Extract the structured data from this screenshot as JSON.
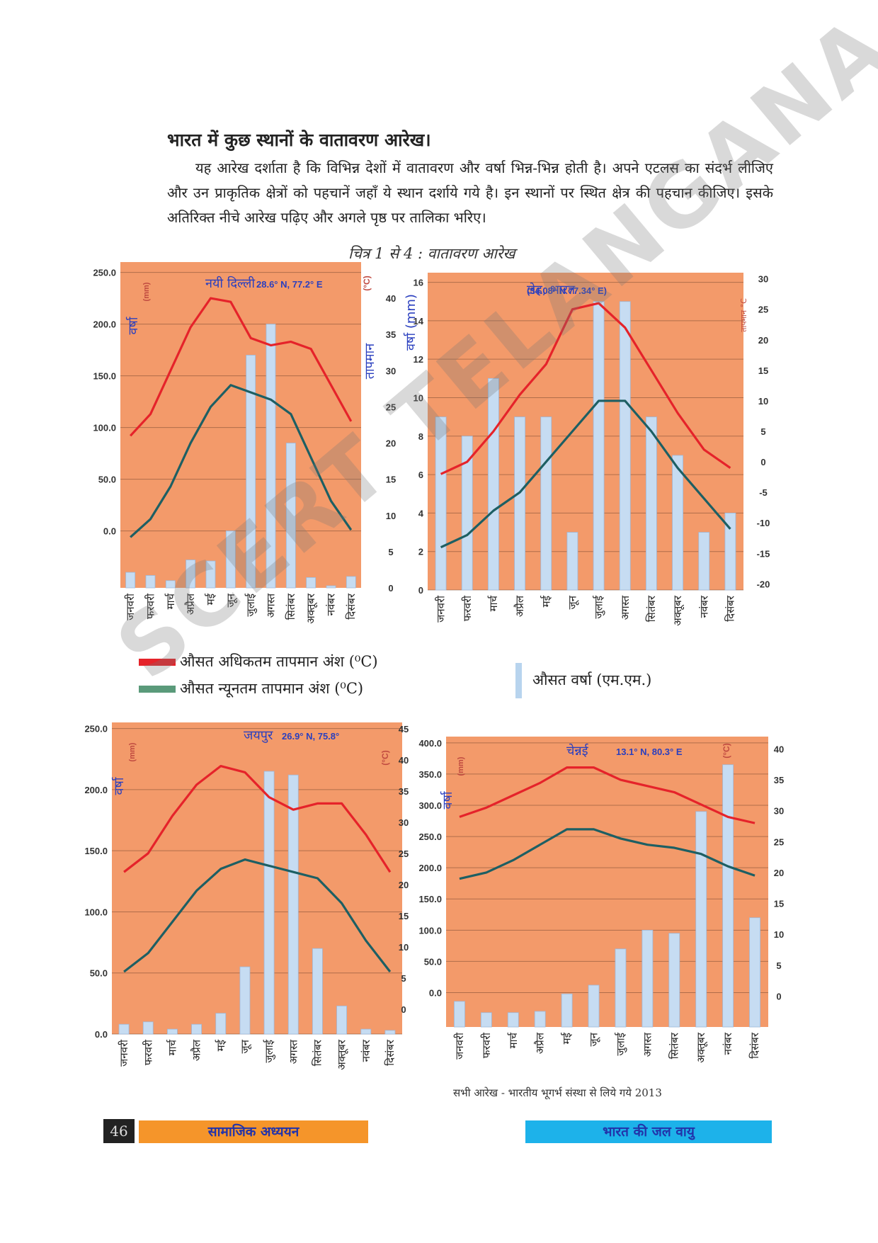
{
  "heading": "भारत में कुछ स्थानों के वातावरण आरेख।",
  "paragraph": "यह आरेख दर्शाता है कि विभिन्न देशों में वातावरण और वर्षा भिन्न-भिन्न होती है। अपने एटलस का संदर्भ लीजिए और उन प्राकृतिक क्षेत्रों को पहचानें जहाँ ये स्थान दर्शाये गये है। इन स्थानों पर स्थित क्षेत्र की पहचान कीजिए। इसके अतिरिक्त नीचे आरेख पढ़िए और अगले पृष्ठ पर तालिका भरिए।",
  "caption": "चित्र 1 से 4 : वातावरण आरेख",
  "legend": {
    "max_temp": "औसत अधिकतम तापमान अंश (⁰C)",
    "min_temp": "औसत न्यूनतम तापमान अंश (⁰C)",
    "rainfall": "औसत वर्षा (एम.एम.)",
    "max_color": "#e5232a",
    "min_color": "#5a9a7a",
    "rain_color": "#b8d4ee"
  },
  "source": "सभी आरेख - भारतीय भूगर्भ संस्था से लिये गये  2013",
  "footer": {
    "page": "46",
    "left": "सामाजिक अध्ययन",
    "right": "भारत की जल वायु"
  },
  "watermark": "SCERT TELANGANA",
  "colors": {
    "plot_bg": "#f39a6a",
    "max_line": "#e5232a",
    "min_line": "#1d5f63",
    "bar": "#c6dcf2",
    "label_blue": "#2a3fbf"
  },
  "chart_data": [
    {
      "type": "bar",
      "title": "नयी दिल्ली",
      "coords": "28.6° N, 77.2° E",
      "ylabel": "वर्षा",
      "ylabel_unit": "(mm)",
      "y2label": "तापमान",
      "y2label_unit": "(°C)",
      "categories": [
        "जनवरी",
        "फरवरी",
        "मार्च",
        "अप्रैल",
        "मई",
        "जून",
        "जुलाई",
        "अगस्त",
        "सितंबर",
        "अक्तूबर",
        "नवंबर",
        "दिसंबर"
      ],
      "rain_ticks": [
        0,
        50,
        100,
        150,
        200,
        250
      ],
      "rain_tick_labels": [
        "0.0",
        "50.0",
        "100.0",
        "150.0",
        "200.0",
        "250.0"
      ],
      "temp_ticks": [
        0,
        5,
        10,
        15,
        20,
        25,
        30,
        35,
        40
      ],
      "rain_ylim": [
        -55,
        260
      ],
      "temp_ylim": [
        0,
        45
      ],
      "rain": [
        -40,
        -43,
        -48,
        -28,
        -29,
        0,
        170,
        200,
        85,
        -45,
        -53,
        -44
      ],
      "max_temp": [
        21,
        24,
        30,
        36,
        40,
        39.5,
        34.5,
        33.5,
        34,
        33,
        28,
        23
      ],
      "min_temp": [
        7,
        9.5,
        14,
        20,
        25,
        28,
        27,
        26,
        24,
        18,
        12,
        8
      ]
    },
    {
      "type": "bar",
      "title": "लेह, भारत",
      "coords": "(34.08° N 77.34° E)",
      "ylabel": "वर्षा (mm)",
      "y2label": "तापमान °C",
      "categories": [
        "जनवरी",
        "फरवरी",
        "मार्च",
        "अप्रैल",
        "मई",
        "जून",
        "जुलाई",
        "अगस्त",
        "सितंबर",
        "अक्तूबर",
        "नवंबर",
        "दिसंबर"
      ],
      "rain_ticks": [
        0,
        2,
        4,
        6,
        8,
        10,
        12,
        14,
        16
      ],
      "temp_ticks": [
        -20,
        -15,
        -10,
        -5,
        0,
        5,
        10,
        15,
        20,
        25,
        30
      ],
      "rain_ylim": [
        0,
        16.5
      ],
      "temp_ylim": [
        -21,
        31
      ],
      "rain": [
        9,
        8,
        11,
        9,
        9,
        3,
        15,
        15,
        9,
        7,
        3,
        4
      ],
      "max_temp": [
        -2,
        0,
        5,
        11,
        16,
        25,
        26,
        22,
        15,
        8,
        2,
        -1
      ],
      "min_temp": [
        -14,
        -12,
        -8,
        -5,
        0,
        5,
        10,
        10,
        5,
        -1,
        -6,
        -11
      ]
    },
    {
      "type": "bar",
      "title": "जयपुर",
      "coords": "26.9° N, 75.8°",
      "ylabel": "वर्षा",
      "ylabel_unit": "(mm)",
      "y2label_unit": "(°C)",
      "categories": [
        "जनवरी",
        "फरवरी",
        "मार्च",
        "अप्रैल",
        "मई",
        "जून",
        "जुलाई",
        "अगस्त",
        "सितंबर",
        "अक्तूबर",
        "नवंबर",
        "दिसंबर"
      ],
      "rain_ticks": [
        0,
        50,
        100,
        150,
        200,
        250
      ],
      "rain_tick_labels": [
        "0.0",
        "50.0",
        "100.0",
        "150.0",
        "200.0",
        "250.0"
      ],
      "temp_ticks": [
        0,
        5,
        10,
        15,
        20,
        25,
        30,
        35,
        40,
        45
      ],
      "rain_ylim": [
        0,
        255
      ],
      "temp_ylim": [
        -4,
        46
      ],
      "rain": [
        8,
        10,
        4,
        8,
        17,
        55,
        215,
        212,
        70,
        23,
        4,
        3
      ],
      "max_temp": [
        22,
        25,
        31,
        36,
        39,
        38,
        34,
        32,
        33,
        33,
        28,
        22
      ],
      "min_temp": [
        6,
        9,
        14,
        19,
        22.5,
        24,
        23,
        22,
        21,
        17,
        11,
        6
      ]
    },
    {
      "type": "bar",
      "title": "चेन्नई",
      "coords": "13.1° N, 80.3° E",
      "ylabel": "वर्षा",
      "ylabel_unit": "(mm)",
      "y2label_unit": "(°C)",
      "categories": [
        "जनवरी",
        "फरवरी",
        "मार्च",
        "अप्रैल",
        "मई",
        "जून",
        "जुलाई",
        "अगस्त",
        "सितंबर",
        "अक्तूबर",
        "नवंबर",
        "दिसंबर"
      ],
      "rain_ticks": [
        0,
        50,
        100,
        150,
        200,
        250,
        300,
        350,
        400
      ],
      "rain_tick_labels": [
        "0.0",
        "50.0",
        "100.0",
        "150.0",
        "200.0",
        "250.0",
        "300.0",
        "350.0",
        "400.0"
      ],
      "temp_ticks": [
        0,
        5,
        10,
        15,
        20,
        25,
        30,
        35,
        40
      ],
      "rain_ylim": [
        -55,
        410
      ],
      "temp_ylim": [
        -5,
        42
      ],
      "rain": [
        -14,
        -32,
        -32,
        -30,
        -2,
        12,
        70,
        100,
        95,
        290,
        365,
        120
      ],
      "max_temp": [
        29,
        30.5,
        32.5,
        34.5,
        37,
        37,
        35,
        34,
        33,
        31,
        29,
        28
      ],
      "min_temp": [
        19,
        20,
        22,
        24.5,
        27,
        27,
        25.5,
        24.5,
        24,
        23,
        21,
        19.5
      ]
    }
  ]
}
